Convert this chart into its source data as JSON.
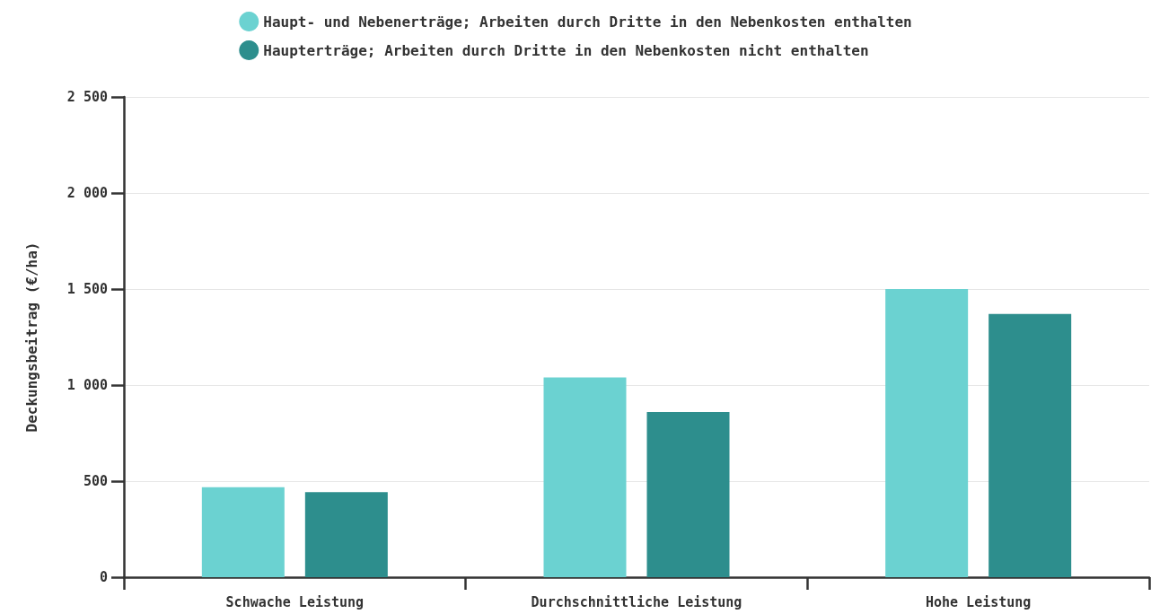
{
  "chart_data": {
    "type": "bar",
    "ylabel": "Deckungsbeitrag (€/ha)",
    "categories": [
      "Schwache Leistung",
      "Durchschnittliche Leistung",
      "Hohe Leistung"
    ],
    "series": [
      {
        "name": "Haupt- und Nebenerträge; Arbeiten durch Dritte in den Nebenkosten enthalten",
        "color": "#6bd2d1",
        "values": [
          468,
          1040,
          1500
        ]
      },
      {
        "name": "Haupterträge; Arbeiten durch Dritte in den Nebenkosten nicht enthalten",
        "color": "#2d8e8d",
        "values": [
          443,
          860,
          1370
        ]
      }
    ],
    "ylim": [
      0,
      2500
    ],
    "yticks": [
      0,
      500,
      {
        "value": 1000,
        "label": "1 000"
      },
      {
        "value": 1500,
        "label": "1 500"
      },
      {
        "value": 2000,
        "label": "2 000"
      },
      {
        "value": 2500,
        "label": "2 500"
      }
    ],
    "grid": "y",
    "legend": "top"
  }
}
